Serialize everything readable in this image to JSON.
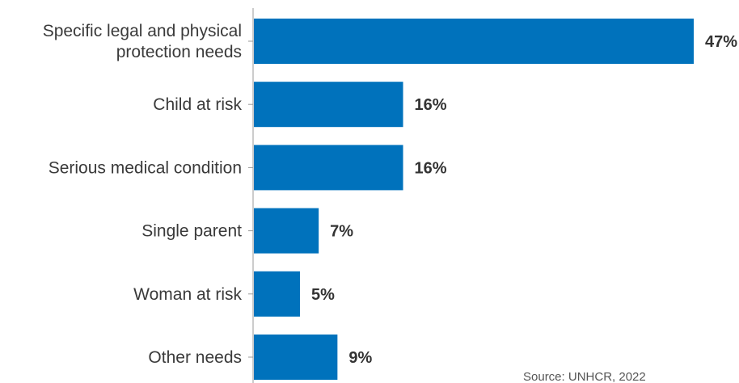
{
  "chart_data": {
    "type": "bar",
    "orientation": "horizontal",
    "categories": [
      [
        "Specific legal and physical",
        "protection needs"
      ],
      [
        "Child at risk"
      ],
      [
        "Serious medical condition"
      ],
      [
        "Single parent"
      ],
      [
        "Woman at risk"
      ],
      [
        "Other needs"
      ]
    ],
    "values": [
      47,
      16,
      16,
      7,
      5,
      9
    ],
    "value_labels": [
      "47%",
      "16%",
      "16%",
      "7%",
      "5%",
      "9%"
    ],
    "xlim": [
      0,
      47
    ],
    "grid": false,
    "bar_color": "#0072bc",
    "source": "Source: UNHCR, 2022"
  }
}
